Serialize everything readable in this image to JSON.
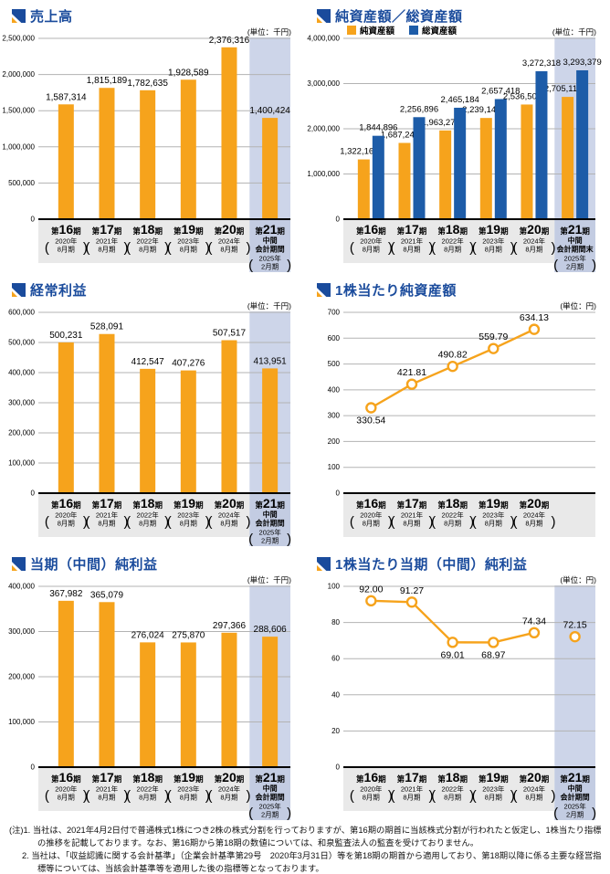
{
  "colors": {
    "navy": "#1A4B9C",
    "orange": "#F6A31C",
    "blue": "#1D5CA8",
    "grid": "#B3B3B3",
    "highlight": "#CDD5E9",
    "xband": "#E9E9E9",
    "xband_hl": "#C3CCE2"
  },
  "notes": [
    "(注)1. 当社は、2021年4月2日付で普通株式1株につき2株の株式分割を行っておりますが、第16期の期首に当該株式分割が行われたと仮定し、1株当たり指標の推移を記載しております。なお、第16期から第18期の数値については、和泉監査法人の監査を受けておりません。",
    "2. 当社は、「収益認識に関する会計基準」（企業会計基準第29号　2020年3月31日）等を第18期の期首から適用しており、第18期以降に係る主要な経営指標等については、当該会計基準等を適用した後の指標等となっております。"
  ],
  "chart_data": [
    {
      "title": "売上高",
      "unit": "(単位：千円)",
      "type": "bar",
      "ymax": 2500000,
      "yticks": [
        "0",
        "500,000",
        "1,000,000",
        "1,500,000",
        "2,000,000",
        "2,500,000"
      ],
      "highlight_last": true,
      "series": [
        {
          "name": "売上高",
          "color": "orange",
          "values": [
            1587314,
            1815189,
            1782635,
            1928589,
            2376316,
            1400424
          ],
          "labels": [
            "1,587,314",
            "1,815,189",
            "1,782,635",
            "1,928,589",
            "2,376,316",
            "1,400,424"
          ]
        }
      ],
      "categories": [
        {
          "pre": "第",
          "num": "16",
          "suf": "期",
          "mid": [],
          "paren": [
            "2020年",
            "8月期"
          ]
        },
        {
          "pre": "第",
          "num": "17",
          "suf": "期",
          "mid": [],
          "paren": [
            "2021年",
            "8月期"
          ]
        },
        {
          "pre": "第",
          "num": "18",
          "suf": "期",
          "mid": [],
          "paren": [
            "2022年",
            "8月期"
          ]
        },
        {
          "pre": "第",
          "num": "19",
          "suf": "期",
          "mid": [],
          "paren": [
            "2023年",
            "8月期"
          ]
        },
        {
          "pre": "第",
          "num": "20",
          "suf": "期",
          "mid": [],
          "paren": [
            "2024年",
            "8月期"
          ]
        },
        {
          "pre": "第",
          "num": "21",
          "suf": "期",
          "mid": [
            "中間",
            "会計期間"
          ],
          "paren": [
            "2025年",
            "2月期"
          ]
        }
      ]
    },
    {
      "title": "純資産額／総資産額",
      "unit": "(単位：千円)",
      "type": "grouped-bar",
      "ymax": 4000000,
      "yticks": [
        "0",
        "1,000,000",
        "2,000,000",
        "3,000,000",
        "4,000,000"
      ],
      "highlight_last": true,
      "legend": [
        {
          "label": "純資産額",
          "color": "#F6A31C"
        },
        {
          "label": "総資産額",
          "color": "#1D5CA8"
        }
      ],
      "series": [
        {
          "name": "純資産額",
          "color": "orange",
          "values": [
            1322167,
            1687246,
            1963271,
            2239141,
            2536509,
            2705115
          ],
          "labels": [
            "1,322,167",
            "1,687,246",
            "1,963,271",
            "2,239,141",
            "2,536,509",
            "2,705,115"
          ]
        },
        {
          "name": "総資産額",
          "color": "blue",
          "values": [
            1844896,
            2256896,
            2465184,
            2657418,
            3272318,
            3293379
          ],
          "labels": [
            "1,844,896",
            "2,256,896",
            "2,465,184",
            "2,657,418",
            "3,272,318",
            "3,293,379"
          ]
        }
      ],
      "categories": [
        {
          "pre": "第",
          "num": "16",
          "suf": "期",
          "mid": [],
          "paren": [
            "2020年",
            "8月期"
          ]
        },
        {
          "pre": "第",
          "num": "17",
          "suf": "期",
          "mid": [],
          "paren": [
            "2021年",
            "8月期"
          ]
        },
        {
          "pre": "第",
          "num": "18",
          "suf": "期",
          "mid": [],
          "paren": [
            "2022年",
            "8月期"
          ]
        },
        {
          "pre": "第",
          "num": "19",
          "suf": "期",
          "mid": [],
          "paren": [
            "2023年",
            "8月期"
          ]
        },
        {
          "pre": "第",
          "num": "20",
          "suf": "期",
          "mid": [],
          "paren": [
            "2024年",
            "8月期"
          ]
        },
        {
          "pre": "第",
          "num": "21",
          "suf": "期",
          "mid": [
            "中間",
            "会計期間末"
          ],
          "paren": [
            "2025年",
            "2月期"
          ]
        }
      ]
    },
    {
      "title": "経常利益",
      "unit": "(単位：千円)",
      "type": "bar",
      "ymax": 600000,
      "yticks": [
        "0",
        "100,000",
        "200,000",
        "300,000",
        "400,000",
        "500,000",
        "600,000"
      ],
      "highlight_last": true,
      "series": [
        {
          "name": "経常利益",
          "color": "orange",
          "values": [
            500231,
            528091,
            412547,
            407276,
            507517,
            413951
          ],
          "labels": [
            "500,231",
            "528,091",
            "412,547",
            "407,276",
            "507,517",
            "413,951"
          ]
        }
      ],
      "categories": [
        {
          "pre": "第",
          "num": "16",
          "suf": "期",
          "mid": [],
          "paren": [
            "2020年",
            "8月期"
          ]
        },
        {
          "pre": "第",
          "num": "17",
          "suf": "期",
          "mid": [],
          "paren": [
            "2021年",
            "8月期"
          ]
        },
        {
          "pre": "第",
          "num": "18",
          "suf": "期",
          "mid": [],
          "paren": [
            "2022年",
            "8月期"
          ]
        },
        {
          "pre": "第",
          "num": "19",
          "suf": "期",
          "mid": [],
          "paren": [
            "2023年",
            "8月期"
          ]
        },
        {
          "pre": "第",
          "num": "20",
          "suf": "期",
          "mid": [],
          "paren": [
            "2024年",
            "8月期"
          ]
        },
        {
          "pre": "第",
          "num": "21",
          "suf": "期",
          "mid": [
            "中間",
            "会計期間"
          ],
          "paren": [
            "2025年",
            "2月期"
          ]
        }
      ]
    },
    {
      "title": "1株当たり純資産額",
      "unit": "(単位：円)",
      "type": "line",
      "ymax": 700,
      "yticks": [
        "0",
        "100",
        "200",
        "300",
        "400",
        "500",
        "600",
        "700"
      ],
      "highlight_last": false,
      "segments": [
        [
          0,
          4
        ]
      ],
      "label_side": [
        "below",
        "above",
        "above",
        "above",
        "above"
      ],
      "series": [
        {
          "name": "1株当たり純資産額",
          "color": "orange",
          "values": [
            330.54,
            421.81,
            490.82,
            559.79,
            634.13
          ],
          "labels": [
            "330.54",
            "421.81",
            "490.82",
            "559.79",
            "634.13"
          ]
        }
      ],
      "categories": [
        {
          "pre": "第",
          "num": "16",
          "suf": "期",
          "mid": [],
          "paren": [
            "2020年",
            "8月期"
          ]
        },
        {
          "pre": "第",
          "num": "17",
          "suf": "期",
          "mid": [],
          "paren": [
            "2021年",
            "8月期"
          ]
        },
        {
          "pre": "第",
          "num": "18",
          "suf": "期",
          "mid": [],
          "paren": [
            "2022年",
            "8月期"
          ]
        },
        {
          "pre": "第",
          "num": "19",
          "suf": "期",
          "mid": [],
          "paren": [
            "2023年",
            "8月期"
          ]
        },
        {
          "pre": "第",
          "num": "20",
          "suf": "期",
          "mid": [],
          "paren": [
            "2024年",
            "8月期"
          ]
        }
      ]
    },
    {
      "title": "当期（中間）純利益",
      "unit": "(単位：千円)",
      "type": "bar",
      "ymax": 400000,
      "yticks": [
        "0",
        "100,000",
        "200,000",
        "300,000",
        "400,000"
      ],
      "highlight_last": true,
      "series": [
        {
          "name": "当期（中間）純利益",
          "color": "orange",
          "values": [
            367982,
            365079,
            276024,
            275870,
            297366,
            288606
          ],
          "labels": [
            "367,982",
            "365,079",
            "276,024",
            "275,870",
            "297,366",
            "288,606"
          ]
        }
      ],
      "categories": [
        {
          "pre": "第",
          "num": "16",
          "suf": "期",
          "mid": [],
          "paren": [
            "2020年",
            "8月期"
          ]
        },
        {
          "pre": "第",
          "num": "17",
          "suf": "期",
          "mid": [],
          "paren": [
            "2021年",
            "8月期"
          ]
        },
        {
          "pre": "第",
          "num": "18",
          "suf": "期",
          "mid": [],
          "paren": [
            "2022年",
            "8月期"
          ]
        },
        {
          "pre": "第",
          "num": "19",
          "suf": "期",
          "mid": [],
          "paren": [
            "2023年",
            "8月期"
          ]
        },
        {
          "pre": "第",
          "num": "20",
          "suf": "期",
          "mid": [],
          "paren": [
            "2024年",
            "8月期"
          ]
        },
        {
          "pre": "第",
          "num": "21",
          "suf": "期",
          "mid": [
            "中間",
            "会計期間"
          ],
          "paren": [
            "2025年",
            "2月期"
          ]
        }
      ]
    },
    {
      "title": "1株当たり当期（中間）純利益",
      "unit": "(単位：円)",
      "type": "line",
      "ymax": 100,
      "yticks": [
        "0",
        "20",
        "40",
        "60",
        "80",
        "100"
      ],
      "highlight_last": true,
      "segments": [
        [
          0,
          4
        ]
      ],
      "label_side": [
        "above",
        "above",
        "below",
        "below",
        "above",
        "above"
      ],
      "series": [
        {
          "name": "1株当たり当期（中間）純利益",
          "color": "orange",
          "values": [
            92.0,
            91.27,
            69.01,
            68.97,
            74.34,
            72.15
          ],
          "labels": [
            "92.00",
            "91.27",
            "69.01",
            "68.97",
            "74.34",
            "72.15"
          ]
        }
      ],
      "categories": [
        {
          "pre": "第",
          "num": "16",
          "suf": "期",
          "mid": [],
          "paren": [
            "2020年",
            "8月期"
          ]
        },
        {
          "pre": "第",
          "num": "17",
          "suf": "期",
          "mid": [],
          "paren": [
            "2021年",
            "8月期"
          ]
        },
        {
          "pre": "第",
          "num": "18",
          "suf": "期",
          "mid": [],
          "paren": [
            "2022年",
            "8月期"
          ]
        },
        {
          "pre": "第",
          "num": "19",
          "suf": "期",
          "mid": [],
          "paren": [
            "2023年",
            "8月期"
          ]
        },
        {
          "pre": "第",
          "num": "20",
          "suf": "期",
          "mid": [],
          "paren": [
            "2024年",
            "8月期"
          ]
        },
        {
          "pre": "第",
          "num": "21",
          "suf": "期",
          "mid": [
            "中間",
            "会計期間"
          ],
          "paren": [
            "2025年",
            "2月期"
          ]
        }
      ]
    }
  ]
}
